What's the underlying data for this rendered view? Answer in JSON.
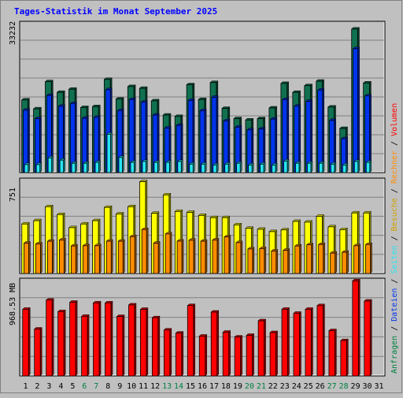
{
  "title": "Tages-Statistik im Monat September 2025",
  "colors": {
    "background": "#c0c0c0",
    "anfragen": "#107050",
    "dateien": "#0034ec",
    "seiten": "#27e6f4",
    "besuche": "#ffff00",
    "rechner": "#ff8c00",
    "volumen": "#ff0000",
    "weekday_label": "#000000",
    "weekend_label": "#008040",
    "title": "#0000ff"
  },
  "chart_data": [
    {
      "type": "bar",
      "panel": "top",
      "y_max_label": "33232",
      "ylim": [
        0,
        33232
      ],
      "categories": [
        "1",
        "2",
        "3",
        "4",
        "5",
        "6",
        "7",
        "8",
        "9",
        "10",
        "11",
        "12",
        "13",
        "14",
        "15",
        "16",
        "17",
        "18",
        "19",
        "20",
        "21",
        "22",
        "23",
        "24",
        "25",
        "26",
        "27",
        "28",
        "29",
        "30",
        "31"
      ],
      "weekend_days": [
        "6",
        "7",
        "13",
        "14",
        "20",
        "21",
        "27",
        "28"
      ],
      "series": [
        {
          "name": "Anfragen",
          "values": [
            16300,
            14300,
            20400,
            18000,
            18700,
            14600,
            14800,
            20900,
            16500,
            19300,
            18900,
            16100,
            12900,
            12600,
            19700,
            16400,
            20200,
            14400,
            12100,
            11800,
            12100,
            14500,
            20000,
            18000,
            19500,
            20500,
            14700,
            9900,
            32200,
            20100,
            0
          ]
        },
        {
          "name": "Dateien",
          "values": [
            14000,
            12100,
            17300,
            14900,
            15500,
            12200,
            12400,
            18600,
            13900,
            16400,
            15800,
            12900,
            10000,
            10600,
            16200,
            13900,
            16900,
            11600,
            10200,
            9600,
            9800,
            12000,
            16400,
            14900,
            16000,
            18500,
            11700,
            7600,
            27800,
            17200,
            0
          ]
        },
        {
          "name": "Seiten",
          "values": [
            1800,
            1800,
            3300,
            2800,
            2100,
            2100,
            2300,
            8600,
            3400,
            2300,
            2500,
            2300,
            2300,
            2500,
            1900,
            1900,
            1700,
            1900,
            2100,
            1700,
            1900,
            1700,
            2600,
            2100,
            2100,
            2100,
            1900,
            1700,
            2500,
            2300,
            0
          ]
        }
      ]
    },
    {
      "type": "bar",
      "panel": "middle",
      "y_max_label": "751",
      "ylim": [
        0,
        751
      ],
      "categories": [
        "1",
        "2",
        "3",
        "4",
        "5",
        "6",
        "7",
        "8",
        "9",
        "10",
        "11",
        "12",
        "13",
        "14",
        "15",
        "16",
        "17",
        "18",
        "19",
        "20",
        "21",
        "22",
        "23",
        "24",
        "25",
        "26",
        "27",
        "28",
        "29",
        "30",
        "31"
      ],
      "series": [
        {
          "name": "Besuche",
          "values": [
            403,
            430,
            544,
            480,
            373,
            403,
            430,
            538,
            485,
            544,
            747,
            490,
            640,
            505,
            498,
            473,
            455,
            455,
            396,
            368,
            360,
            341,
            355,
            424,
            418,
            466,
            380,
            357,
            493,
            493,
            0
          ]
        },
        {
          "name": "Rechner",
          "values": [
            247,
            241,
            263,
            273,
            224,
            226,
            226,
            263,
            263,
            300,
            358,
            247,
            322,
            264,
            271,
            263,
            273,
            298,
            251,
            200,
            203,
            183,
            189,
            224,
            234,
            236,
            166,
            173,
            226,
            236,
            0
          ]
        }
      ]
    },
    {
      "type": "bar",
      "panel": "bottom",
      "y_max_label": "968.53 MB",
      "ylim": [
        0,
        968.53
      ],
      "categories": [
        "1",
        "2",
        "3",
        "4",
        "5",
        "6",
        "7",
        "8",
        "9",
        "10",
        "11",
        "12",
        "13",
        "14",
        "15",
        "16",
        "17",
        "18",
        "19",
        "20",
        "21",
        "22",
        "23",
        "24",
        "25",
        "26",
        "27",
        "28",
        "29",
        "30",
        "31"
      ],
      "series": [
        {
          "name": "Volumen",
          "values": [
            683,
            480,
            777,
            659,
            755,
            611,
            748,
            748,
            609,
            727,
            682,
            596,
            471,
            439,
            721,
            408,
            654,
            448,
            399,
            416,
            565,
            444,
            683,
            642,
            683,
            720,
            464,
            362,
            974,
            767,
            0
          ]
        }
      ]
    }
  ],
  "legend_right": [
    {
      "text": "Anfragen",
      "color": "#008040"
    },
    {
      "text": " / ",
      "color": "#000000"
    },
    {
      "text": "Dateien",
      "color": "#0034ec"
    },
    {
      "text": " / ",
      "color": "#000000"
    },
    {
      "text": "Seiten",
      "color": "#27e6f4"
    },
    {
      "text": " / ",
      "color": "#000000"
    },
    {
      "text": "Besuche",
      "color": "#d0a000"
    },
    {
      "text": " / ",
      "color": "#000000"
    },
    {
      "text": "Rechner",
      "color": "#ff8c00"
    },
    {
      "text": " / ",
      "color": "#000000"
    },
    {
      "text": "Volumen",
      "color": "#ff0000"
    }
  ]
}
